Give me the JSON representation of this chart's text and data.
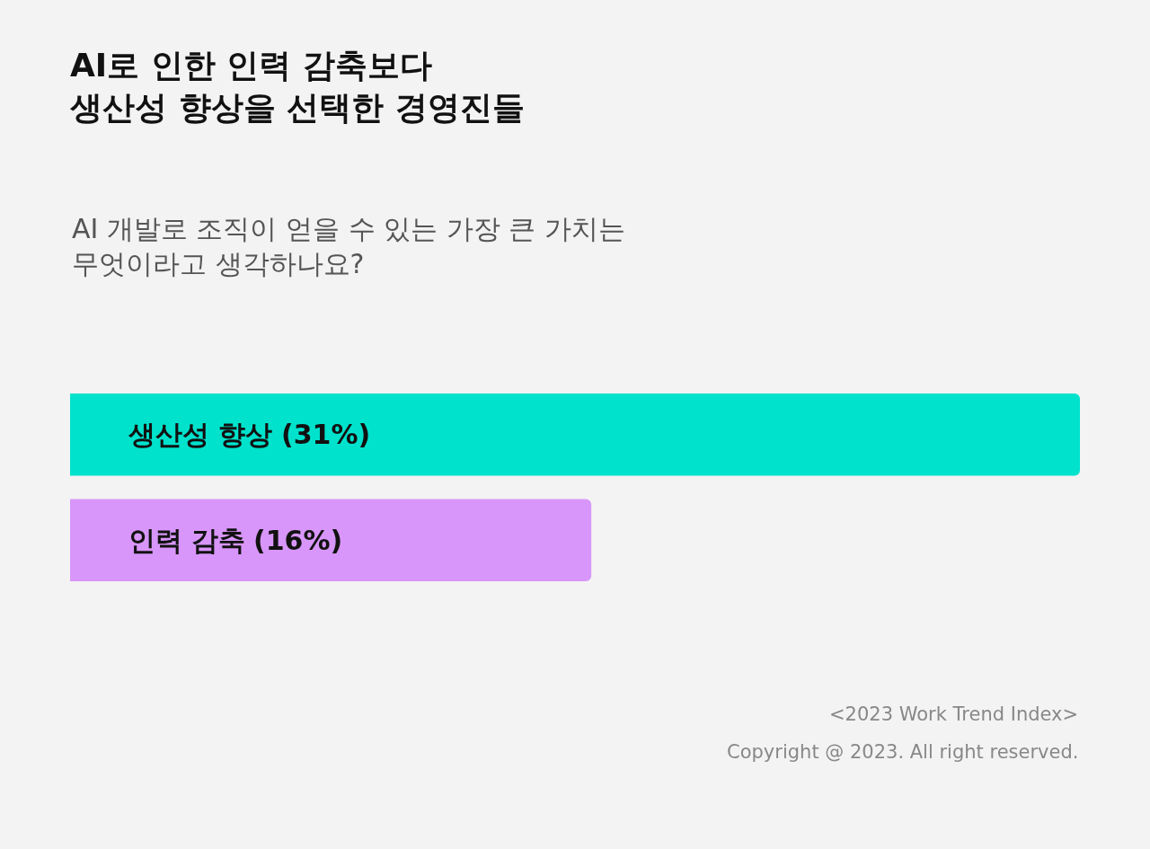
{
  "chart_data": {
    "type": "bar",
    "orientation": "horizontal",
    "title": "AI로 인한 인력 감축보다\n생산성 향상을 선택한 경영진들",
    "subtitle": "AI 개발로 조직이 얻을 수 있는 가장 큰 가치는\n무엇이라고 생각하나요?",
    "categories": [
      "생산성 향상",
      "인력 감축"
    ],
    "values": [
      31,
      16
    ],
    "value_labels": [
      "(31%)",
      "(16%)"
    ],
    "colors": [
      "#00e2cc",
      "#d896fa"
    ],
    "tick_labels": "y",
    "annotations": [
      "<2023 Work Trend Index>",
      "Copyright @ 2023. All right reserved."
    ]
  }
}
